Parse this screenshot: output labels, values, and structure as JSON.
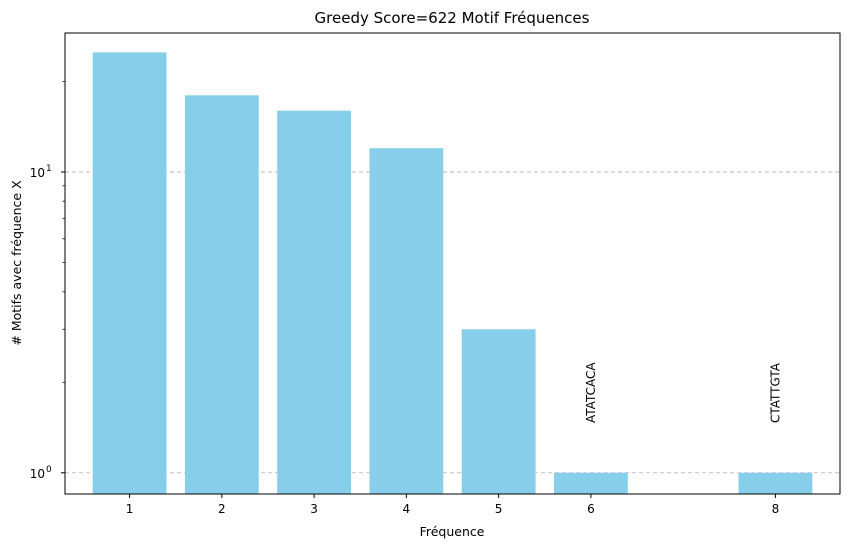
{
  "chart_data": {
    "type": "bar",
    "title": "Greedy Score=622 Motif Fréquences",
    "xlabel": "Fréquence",
    "ylabel": "# Motifs avec fréquence X",
    "yscale": "log",
    "ylim": [
      0.85,
      29
    ],
    "xlim": [
      0.3,
      8.7
    ],
    "y_ticks": [
      {
        "value": 1,
        "base": "10",
        "exp": "0"
      },
      {
        "value": 10,
        "base": "10",
        "exp": "1"
      }
    ],
    "x": [
      1,
      2,
      3,
      4,
      5,
      6,
      8
    ],
    "x_tick_labels": [
      "1",
      "2",
      "3",
      "4",
      "5",
      "6",
      "8"
    ],
    "values": [
      25,
      18,
      16,
      12,
      3,
      1,
      1
    ],
    "color": "#87CEEB",
    "grid": "y-major-dashed",
    "annotations": [
      {
        "x": 6,
        "text": "ATATCACA"
      },
      {
        "x": 8,
        "text": "CTATTGTA"
      }
    ]
  }
}
